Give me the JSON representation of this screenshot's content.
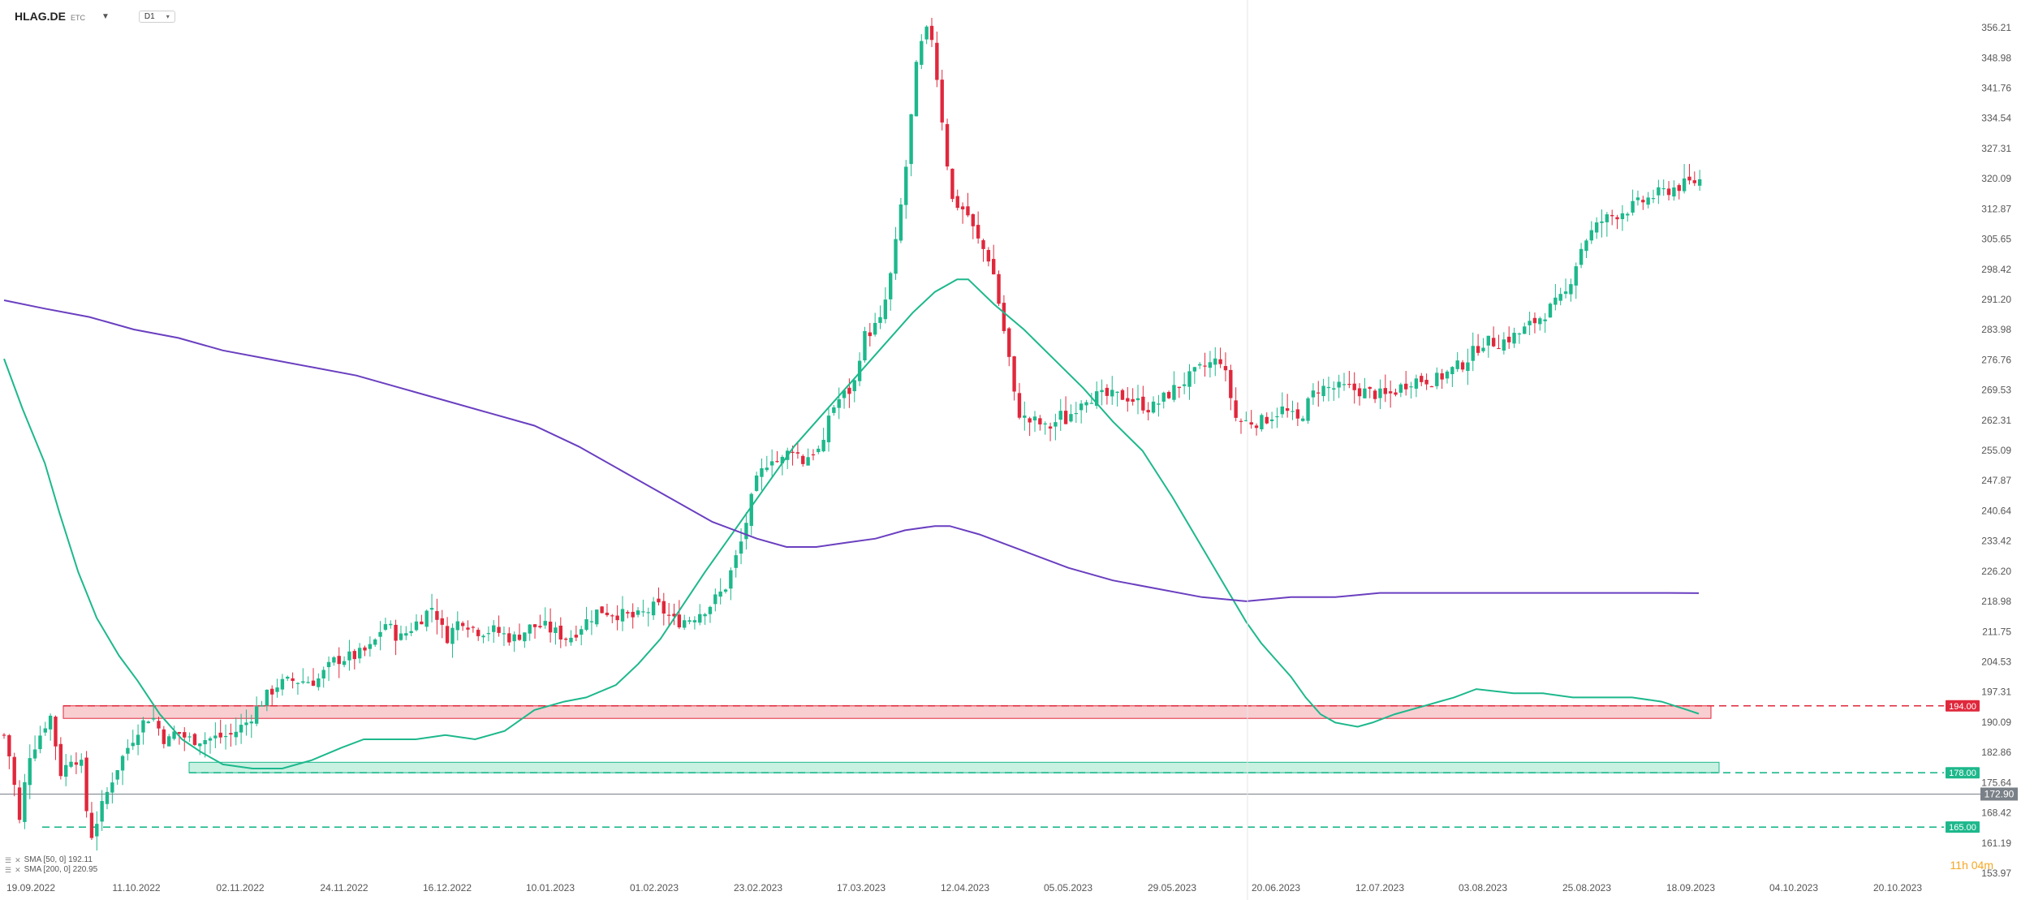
{
  "header": {
    "symbol": "HLAG.DE",
    "exchange": "ETC",
    "timeframe": "D1"
  },
  "indicators": [
    {
      "label": "SMA [50, 0] 192.11",
      "color": "#1db88c"
    },
    {
      "label": "SMA [200, 0] 220.95",
      "color": "#6a3fc0"
    }
  ],
  "timer": {
    "hours": "11h",
    "minutes": "04m"
  },
  "colors": {
    "up": "#1db88c",
    "down": "#e0283c",
    "sma50": "#1db88c",
    "sma200": "#6a3fc0",
    "resistance_fill": "#f7c6c9",
    "support_fill": "#bfeedd",
    "last_price": "#7a8087"
  },
  "chart_data": {
    "type": "candlestick",
    "ylim": [
      153.97,
      358.5
    ],
    "y_ticks": [
      "356.21",
      "348.98",
      "341.76",
      "334.54",
      "327.31",
      "320.09",
      "312.87",
      "305.65",
      "298.42",
      "291.20",
      "283.98",
      "276.76",
      "269.53",
      "262.31",
      "255.09",
      "247.87",
      "240.64",
      "233.42",
      "226.20",
      "218.98",
      "211.75",
      "204.53",
      "197.31",
      "190.09",
      "182.86",
      "175.64",
      "168.42",
      "161.19",
      "153.97"
    ],
    "x_ticks": [
      "19.09.2022",
      "11.10.2022",
      "02.11.2022",
      "24.11.2022",
      "16.12.2022",
      "10.01.2023",
      "01.02.2023",
      "23.02.2023",
      "17.03.2023",
      "12.04.2023",
      "05.05.2023",
      "29.05.2023",
      "20.06.2023",
      "12.07.2023",
      "03.08.2023",
      "25.08.2023",
      "18.09.2023",
      "04.10.2023",
      "20.10.2023"
    ],
    "levels": [
      {
        "label": "194.00",
        "value": 194.0,
        "color": "#e0283c",
        "style": "dashed"
      },
      {
        "label": "178.00",
        "value": 178.0,
        "color": "#1db88c",
        "style": "dashed"
      },
      {
        "label": "165.00",
        "value": 165.0,
        "color": "#1db88c",
        "style": "dashed"
      }
    ],
    "last_price": {
      "label": "172.90",
      "value": 172.9
    },
    "zones": [
      {
        "name": "resistance",
        "from": 191.0,
        "to": 194.0
      },
      {
        "name": "support",
        "from": 178.0,
        "to": 180.5
      }
    ],
    "key_points": [
      [
        0,
        187
      ],
      [
        12,
        180
      ],
      [
        25,
        166
      ],
      [
        40,
        182
      ],
      [
        55,
        186
      ],
      [
        75,
        192
      ],
      [
        95,
        176
      ],
      [
        105,
        182
      ],
      [
        125,
        181
      ],
      [
        140,
        162
      ],
      [
        160,
        170
      ],
      [
        180,
        178
      ],
      [
        205,
        185
      ],
      [
        220,
        189
      ],
      [
        240,
        192
      ],
      [
        265,
        185
      ],
      [
        280,
        188
      ],
      [
        300,
        186
      ],
      [
        330,
        186
      ],
      [
        370,
        187
      ],
      [
        395,
        190
      ],
      [
        420,
        195
      ],
      [
        445,
        199
      ],
      [
        470,
        200
      ],
      [
        510,
        200
      ],
      [
        540,
        205
      ],
      [
        575,
        206
      ],
      [
        600,
        208
      ],
      [
        620,
        214
      ],
      [
        645,
        210
      ],
      [
        680,
        215
      ],
      [
        700,
        218
      ],
      [
        720,
        210
      ],
      [
        745,
        215
      ],
      [
        770,
        212
      ],
      [
        800,
        212
      ],
      [
        830,
        210
      ],
      [
        860,
        213
      ],
      [
        880,
        213
      ],
      [
        920,
        210
      ],
      [
        940,
        213
      ],
      [
        970,
        217
      ],
      [
        1000,
        216
      ],
      [
        1030,
        215
      ],
      [
        1065,
        218
      ],
      [
        1095,
        214
      ],
      [
        1120,
        215
      ],
      [
        1150,
        218
      ],
      [
        1175,
        222
      ],
      [
        1200,
        232
      ],
      [
        1225,
        247
      ],
      [
        1250,
        254
      ],
      [
        1265,
        252
      ],
      [
        1285,
        256
      ],
      [
        1305,
        252
      ],
      [
        1315,
        255
      ],
      [
        1335,
        255
      ],
      [
        1345,
        264
      ],
      [
        1365,
        268
      ],
      [
        1385,
        270
      ],
      [
        1400,
        282
      ],
      [
        1430,
        286
      ],
      [
        1450,
        300
      ],
      [
        1470,
        322
      ],
      [
        1490,
        350
      ],
      [
        1510,
        357
      ],
      [
        1525,
        340
      ],
      [
        1545,
        315
      ],
      [
        1570,
        312
      ],
      [
        1585,
        306
      ],
      [
        1610,
        300
      ],
      [
        1640,
        276
      ],
      [
        1650,
        265
      ],
      [
        1668,
        262
      ],
      [
        1685,
        262
      ],
      [
        1700,
        260
      ],
      [
        1715,
        262
      ],
      [
        1720,
        264
      ],
      [
        1730,
        262
      ],
      [
        1760,
        268
      ],
      [
        1790,
        268
      ],
      [
        1830,
        268
      ],
      [
        1870,
        265
      ],
      [
        1910,
        270
      ],
      [
        1955,
        275
      ],
      [
        1985,
        277
      ],
      [
        2010,
        262
      ],
      [
        2050,
        262
      ],
      [
        2085,
        265
      ],
      [
        2110,
        262
      ],
      [
        2140,
        270
      ],
      [
        2190,
        270
      ],
      [
        2255,
        268
      ],
      [
        2295,
        272
      ],
      [
        2335,
        272
      ],
      [
        2380,
        276
      ],
      [
        2410,
        281
      ],
      [
        2440,
        281
      ],
      [
        2470,
        283
      ],
      [
        2505,
        287
      ],
      [
        2545,
        292
      ],
      [
        2575,
        305
      ],
      [
        2605,
        310
      ],
      [
        2650,
        313
      ],
      [
        2690,
        316
      ],
      [
        2725,
        318
      ],
      [
        2770,
        320
      ]
    ],
    "series": [
      {
        "name": "SMA [50, 0] 192.11",
        "values": [
          [
            5,
            277
          ],
          [
            30,
            265
          ],
          [
            60,
            252
          ],
          [
            80,
            240
          ],
          [
            105,
            226
          ],
          [
            130,
            215
          ],
          [
            160,
            206
          ],
          [
            185,
            200
          ],
          [
            215,
            192
          ],
          [
            245,
            186
          ],
          [
            270,
            183
          ],
          [
            300,
            180
          ],
          [
            340,
            179
          ],
          [
            380,
            179
          ],
          [
            420,
            181
          ],
          [
            460,
            184
          ],
          [
            490,
            186
          ],
          [
            530,
            186
          ],
          [
            560,
            186
          ],
          [
            600,
            187
          ],
          [
            640,
            186
          ],
          [
            680,
            188
          ],
          [
            720,
            193
          ],
          [
            760,
            195
          ],
          [
            790,
            196
          ],
          [
            830,
            199
          ],
          [
            860,
            204
          ],
          [
            890,
            210
          ],
          [
            920,
            218
          ],
          [
            950,
            226
          ],
          [
            990,
            236
          ],
          [
            1030,
            246
          ],
          [
            1070,
            256
          ],
          [
            1110,
            264
          ],
          [
            1150,
            272
          ],
          [
            1190,
            280
          ],
          [
            1230,
            288
          ],
          [
            1260,
            293
          ],
          [
            1290,
            296
          ],
          [
            1305,
            296
          ],
          [
            1340,
            290
          ],
          [
            1380,
            284
          ],
          [
            1420,
            277
          ],
          [
            1460,
            270
          ],
          [
            1500,
            262
          ],
          [
            1540,
            255
          ],
          [
            1580,
            244
          ],
          [
            1620,
            232
          ],
          [
            1660,
            220
          ],
          [
            1680,
            214
          ],
          [
            1700,
            209
          ],
          [
            1720,
            205
          ],
          [
            1740,
            201
          ],
          [
            1760,
            196
          ],
          [
            1780,
            192
          ],
          [
            1800,
            190
          ],
          [
            1830,
            189
          ],
          [
            1850,
            190
          ],
          [
            1880,
            192
          ],
          [
            1920,
            194
          ],
          [
            1960,
            196
          ],
          [
            1990,
            198
          ],
          [
            2040,
            197
          ],
          [
            2080,
            197
          ],
          [
            2120,
            196
          ],
          [
            2160,
            196
          ],
          [
            2200,
            196
          ],
          [
            2240,
            195
          ],
          [
            2275,
            193
          ],
          [
            2290,
            192.11
          ]
        ]
      },
      {
        "name": "SMA [200, 0] 220.95",
        "values": [
          [
            5,
            291
          ],
          [
            60,
            289
          ],
          [
            120,
            287
          ],
          [
            180,
            284
          ],
          [
            240,
            282
          ],
          [
            300,
            279
          ],
          [
            360,
            277
          ],
          [
            420,
            275
          ],
          [
            480,
            273
          ],
          [
            540,
            270
          ],
          [
            600,
            267
          ],
          [
            660,
            264
          ],
          [
            720,
            261
          ],
          [
            780,
            256
          ],
          [
            840,
            250
          ],
          [
            900,
            244
          ],
          [
            960,
            238
          ],
          [
            1020,
            234
          ],
          [
            1060,
            232
          ],
          [
            1100,
            232
          ],
          [
            1140,
            233
          ],
          [
            1180,
            234
          ],
          [
            1220,
            236
          ],
          [
            1260,
            237
          ],
          [
            1280,
            237
          ],
          [
            1320,
            235
          ],
          [
            1380,
            231
          ],
          [
            1440,
            227
          ],
          [
            1500,
            224
          ],
          [
            1560,
            222
          ],
          [
            1620,
            220
          ],
          [
            1680,
            219
          ],
          [
            1740,
            220
          ],
          [
            1800,
            220
          ],
          [
            1860,
            221
          ],
          [
            1920,
            221
          ],
          [
            1980,
            221
          ],
          [
            2040,
            221
          ],
          [
            2100,
            221
          ],
          [
            2150,
            221
          ],
          [
            2200,
            221
          ],
          [
            2250,
            221
          ],
          [
            2290,
            220.95
          ]
        ]
      }
    ]
  }
}
